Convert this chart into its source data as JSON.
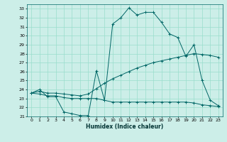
{
  "title": "",
  "xlabel": "Humidex (Indice chaleur)",
  "ylabel": "",
  "bg_color": "#cceee8",
  "grid_color": "#99ddcc",
  "line_color": "#006666",
  "xlim": [
    -0.5,
    23.5
  ],
  "ylim": [
    21,
    33.5
  ],
  "yticks": [
    21,
    22,
    23,
    24,
    25,
    26,
    27,
    28,
    29,
    30,
    31,
    32,
    33
  ],
  "xticks": [
    0,
    1,
    2,
    3,
    4,
    5,
    6,
    7,
    8,
    9,
    10,
    11,
    12,
    13,
    14,
    15,
    16,
    17,
    18,
    19,
    20,
    21,
    22,
    23
  ],
  "series": [
    {
      "x": [
        0,
        1,
        2,
        3,
        4,
        5,
        6,
        7,
        8,
        9,
        10,
        11,
        12,
        13,
        14,
        15,
        16,
        17,
        18,
        19,
        20,
        21,
        22,
        23
      ],
      "y": [
        23.6,
        24.0,
        23.2,
        23.2,
        21.5,
        21.3,
        21.1,
        21.1,
        26.1,
        22.8,
        31.3,
        32.0,
        33.1,
        32.3,
        32.6,
        32.6,
        31.5,
        30.2,
        29.8,
        27.7,
        29.0,
        25.0,
        22.8,
        22.2
      ]
    },
    {
      "x": [
        0,
        1,
        2,
        3,
        4,
        5,
        6,
        7,
        8,
        9,
        10,
        11,
        12,
        13,
        14,
        15,
        16,
        17,
        18,
        19,
        20,
        21,
        22,
        23
      ],
      "y": [
        23.6,
        23.8,
        23.6,
        23.6,
        23.5,
        23.4,
        23.3,
        23.5,
        24.1,
        24.7,
        25.2,
        25.6,
        26.0,
        26.4,
        26.7,
        27.0,
        27.2,
        27.4,
        27.6,
        27.8,
        28.0,
        27.9,
        27.8,
        27.6
      ]
    },
    {
      "x": [
        0,
        1,
        2,
        3,
        4,
        5,
        6,
        7,
        8,
        9,
        10,
        11,
        12,
        13,
        14,
        15,
        16,
        17,
        18,
        19,
        20,
        21,
        22,
        23
      ],
      "y": [
        23.6,
        23.5,
        23.3,
        23.3,
        23.1,
        23.0,
        23.0,
        23.0,
        23.0,
        22.8,
        22.6,
        22.6,
        22.6,
        22.6,
        22.6,
        22.6,
        22.6,
        22.6,
        22.6,
        22.6,
        22.5,
        22.3,
        22.2,
        22.1
      ]
    }
  ]
}
